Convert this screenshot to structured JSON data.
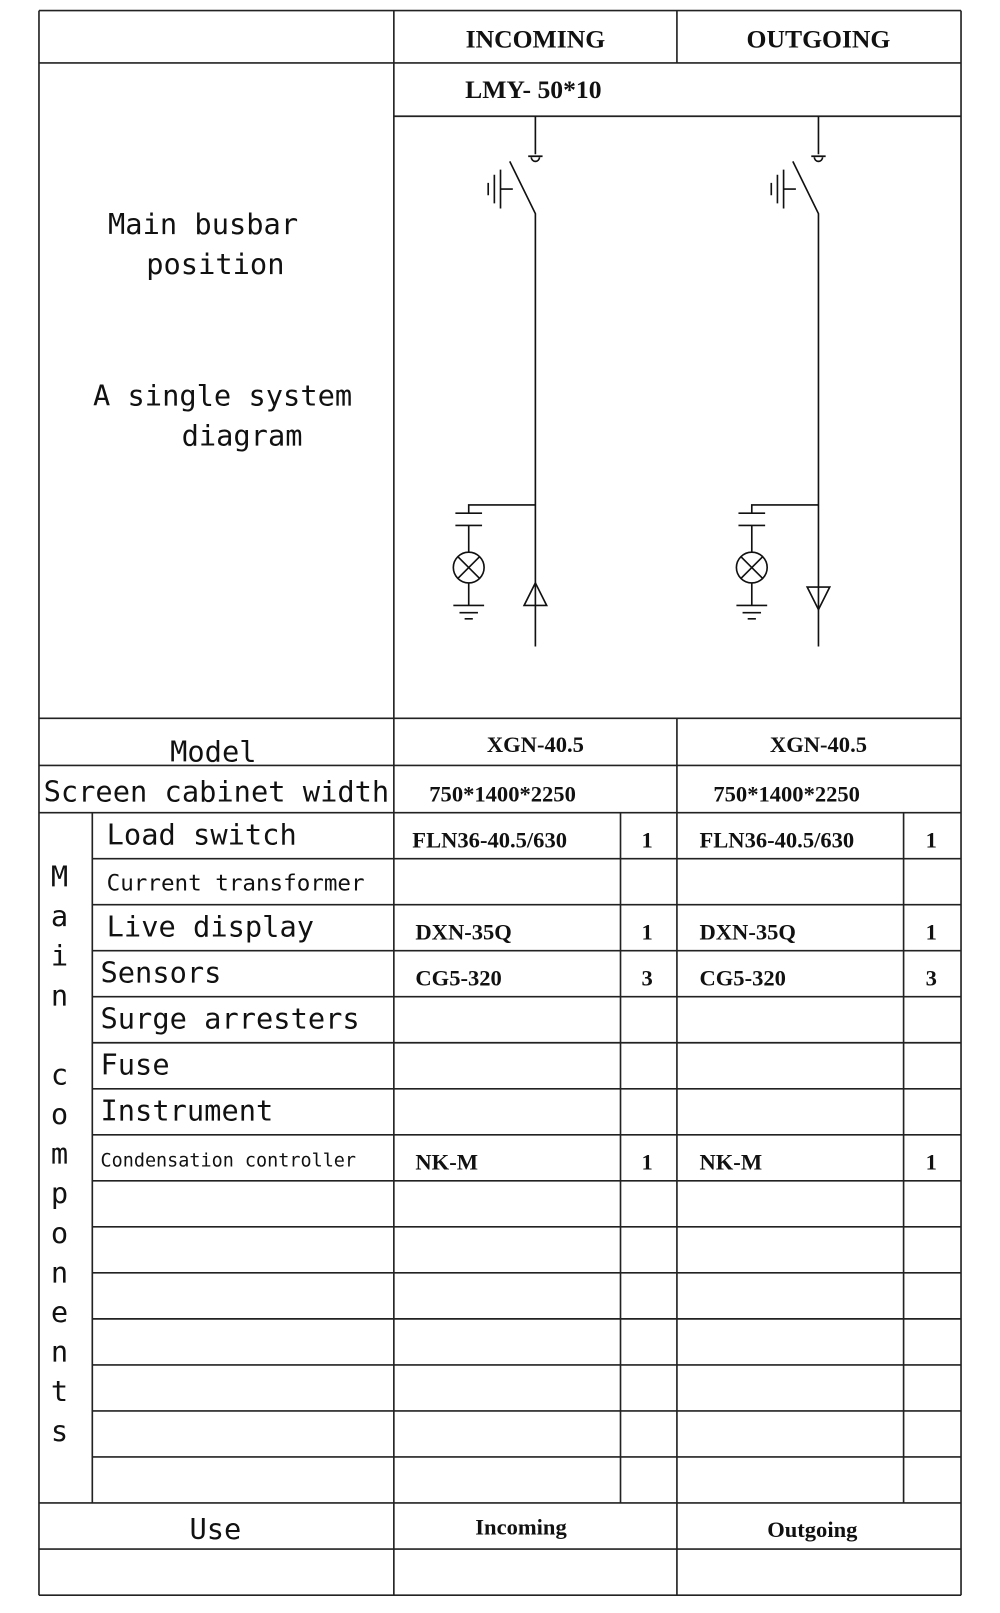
{
  "header": {
    "incoming": "INCOMING",
    "outgoing": "OUTGOING",
    "busbar": "LMY- 50*10"
  },
  "left_panel": {
    "busbar_line1": "Main busbar",
    "busbar_line2": "position",
    "diagram_line1": "A single system",
    "diagram_line2": "diagram"
  },
  "model": {
    "label": "Model",
    "incoming": "XGN-40.5",
    "outgoing": "XGN-40.5"
  },
  "cabinet": {
    "label": "Screen cabinet width",
    "incoming": "750*1400*2250",
    "outgoing": "750*1400*2250"
  },
  "components_label": [
    "M",
    "a",
    "i",
    "n",
    "",
    "c",
    "o",
    "m",
    "p",
    "o",
    "n",
    "e",
    "n",
    "t",
    "s"
  ],
  "components": [
    {
      "name": "Load switch",
      "in_model": "FLN36-40.5/630",
      "in_qty": "1",
      "out_model": "FLN36-40.5/630",
      "out_qty": "1"
    },
    {
      "name": "Current transformer",
      "in_model": "",
      "in_qty": "",
      "out_model": "",
      "out_qty": ""
    },
    {
      "name": "Live display",
      "in_model": "DXN-35Q",
      "in_qty": "1",
      "out_model": "DXN-35Q",
      "out_qty": "1"
    },
    {
      "name": "Sensors",
      "in_model": "CG5-320",
      "in_qty": "3",
      "out_model": "CG5-320",
      "out_qty": "3"
    },
    {
      "name": "Surge arresters",
      "in_model": "",
      "in_qty": "",
      "out_model": "",
      "out_qty": ""
    },
    {
      "name": "Fuse",
      "in_model": "",
      "in_qty": "",
      "out_model": "",
      "out_qty": ""
    },
    {
      "name": "Instrument",
      "in_model": "",
      "in_qty": "",
      "out_model": "",
      "out_qty": ""
    },
    {
      "name": "Condensation controller",
      "in_model": "NK-M",
      "in_qty": "1",
      "out_model": "NK-M",
      "out_qty": "1"
    }
  ],
  "use": {
    "label": "Use",
    "incoming": "Incoming",
    "outgoing": "Outgoing"
  }
}
